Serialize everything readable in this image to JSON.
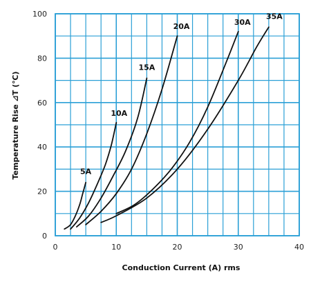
{
  "chart_data": {
    "type": "line",
    "title": "",
    "xlabel": "Conduction Current (A) rms",
    "ylabel": "Temperature Rise ⊿T (℃)",
    "xlim": [
      0,
      40
    ],
    "ylim": [
      0,
      100
    ],
    "xticks": [
      0,
      10,
      20,
      30,
      40
    ],
    "yticks": [
      0,
      20,
      40,
      60,
      80,
      100
    ],
    "grid": true,
    "grid_color": "#2a9fd6",
    "line_color": "#111111",
    "series": [
      {
        "name": "5A",
        "x": [
          1.5,
          2.5,
          3.3,
          4.0,
          4.5,
          5.0
        ],
        "y": [
          3,
          5,
          9,
          14,
          19,
          24
        ]
      },
      {
        "name": "10A",
        "x": [
          2.5,
          4.0,
          5.5,
          7.0,
          8.2,
          9.2,
          10.0
        ],
        "y": [
          3,
          8,
          15,
          24,
          32,
          41,
          51
        ]
      },
      {
        "name": "15A",
        "x": [
          3.5,
          5.5,
          7.5,
          9.5,
          11.5,
          13.5,
          15.0
        ],
        "y": [
          4,
          9,
          17,
          27,
          38,
          53,
          71
        ]
      },
      {
        "name": "20A",
        "x": [
          5.0,
          7.5,
          10.0,
          12.5,
          15.0,
          17.5,
          20.0
        ],
        "y": [
          5,
          11,
          19,
          30,
          46,
          66,
          90
        ]
      },
      {
        "name": "30A",
        "x": [
          10.0,
          13.0,
          16.0,
          19.0,
          22.0,
          25.0,
          28.0,
          30.0
        ],
        "y": [
          10,
          14,
          21,
          30,
          42,
          58,
          78,
          92
        ]
      },
      {
        "name": "35A",
        "x": [
          7.5,
          10.0,
          15.0,
          20.0,
          25.0,
          30.0,
          33.0,
          35.0
        ],
        "y": [
          6,
          9,
          17,
          30,
          48,
          70,
          85,
          94
        ]
      }
    ]
  }
}
